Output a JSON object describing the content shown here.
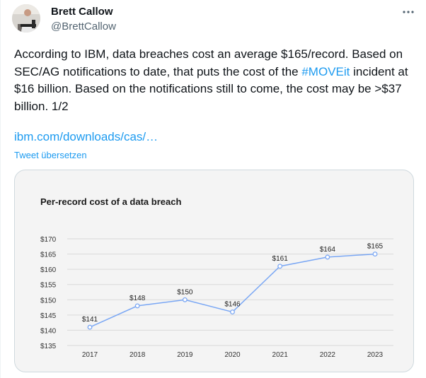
{
  "author": {
    "name": "Brett Callow",
    "handle": "@BrettCallow"
  },
  "tweet": {
    "text_before": "According to IBM, data breaches cost an average $165/record. Based on SEC/AG notifications to date, that puts the cost of the ",
    "hashtag": "#MOVEit",
    "text_after": " incident at $16 billion. Based on the notifications still to come, the cost may be >$37 billion. 1/2",
    "link": "ibm.com/downloads/cas/…",
    "translate_label": "Tweet übersetzen"
  },
  "colors": {
    "accent": "#1d9bf0",
    "line": "#7aa7f4",
    "card_bg": "#f4f4f4"
  },
  "chart_data": {
    "type": "line",
    "title": "Per-record cost of a data breach",
    "categories": [
      "2017",
      "2018",
      "2019",
      "2020",
      "2021",
      "2022",
      "2023"
    ],
    "values": [
      141,
      148,
      150,
      146,
      161,
      164,
      165
    ],
    "data_labels": [
      "$141",
      "$148",
      "$150",
      "$146",
      "$161",
      "$164",
      "$165"
    ],
    "y_ticks": [
      135,
      140,
      145,
      150,
      155,
      160,
      165,
      170
    ],
    "y_tick_labels": [
      "$135",
      "$140",
      "$145",
      "$150",
      "$155",
      "$160",
      "$165",
      "$170"
    ],
    "ylim": [
      135,
      170
    ],
    "xlabel": "",
    "ylabel": "",
    "grid": true,
    "legend": "none"
  }
}
